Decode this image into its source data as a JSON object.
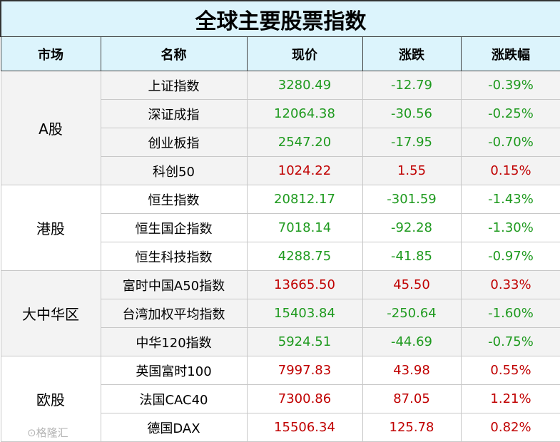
{
  "title": "全球主要股票指数",
  "headers": [
    "市场",
    "名称",
    "现价",
    "涨跌",
    "涨跌幅"
  ],
  "colors": {
    "up": "#c00000",
    "down": "#1e9a1e",
    "header_bg": "#dcf4fc"
  },
  "groups": [
    {
      "market": "A股",
      "rows": [
        {
          "name": "上证指数",
          "price": "3280.49",
          "change": "-12.79",
          "pct": "-0.39%"
        },
        {
          "name": "深证成指",
          "price": "12064.38",
          "change": "-30.56",
          "pct": "-0.25%"
        },
        {
          "name": "创业板指",
          "price": "2547.20",
          "change": "-17.95",
          "pct": "-0.70%"
        },
        {
          "name": "科创50",
          "price": "1024.22",
          "change": "1.55",
          "pct": "0.15%"
        }
      ]
    },
    {
      "market": "港股",
      "rows": [
        {
          "name": "恒生指数",
          "price": "20812.17",
          "change": "-301.59",
          "pct": "-1.43%"
        },
        {
          "name": "恒生国企指数",
          "price": "7018.14",
          "change": "-92.28",
          "pct": "-1.30%"
        },
        {
          "name": "恒生科技指数",
          "price": "4288.75",
          "change": "-41.85",
          "pct": "-0.97%"
        }
      ]
    },
    {
      "market": "大中华区",
      "rows": [
        {
          "name": "富时中国A50指数",
          "price": "13665.50",
          "change": "45.50",
          "pct": "0.33%"
        },
        {
          "name": "台湾加权平均指数",
          "price": "15403.84",
          "change": "-250.64",
          "pct": "-1.60%"
        },
        {
          "name": "中华120指数",
          "price": "5924.51",
          "change": "-44.69",
          "pct": "-0.75%"
        }
      ]
    },
    {
      "market": "欧股",
      "rows": [
        {
          "name": "英国富时100",
          "price": "7997.83",
          "change": "43.98",
          "pct": "0.55%"
        },
        {
          "name": "法国CAC40",
          "price": "7300.86",
          "change": "87.05",
          "pct": "1.21%"
        },
        {
          "name": "德国DAX",
          "price": "15506.34",
          "change": "125.78",
          "pct": "0.82%"
        }
      ]
    }
  ],
  "watermark": "格隆汇"
}
